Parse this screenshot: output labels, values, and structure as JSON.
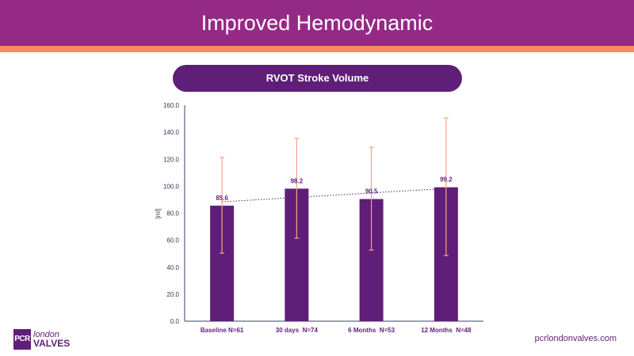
{
  "header": {
    "title": "Improved Hemodynamic"
  },
  "colors": {
    "header": "#952a86",
    "accent": "#f78a66",
    "bar": "#5f1f78",
    "error": "#f3a483",
    "axis": "#2d3a55"
  },
  "footer": {
    "logo_box": "PCR",
    "logo_top": "london",
    "logo_bottom": "VALVES",
    "website": "pcrlondonvalves.com"
  },
  "chart_data": {
    "type": "bar",
    "title": "RVOT Stroke Volume",
    "ylabel": "[ml]",
    "xlabel": "",
    "ylim": [
      0,
      160
    ],
    "yticks": [
      "0.0",
      "20.0",
      "40.0",
      "60.0",
      "80.0",
      "100.0",
      "120.0",
      "140.0",
      "160.0"
    ],
    "categories": [
      "Baseline N=61",
      "30 days  N=74",
      "6 Months  N=53",
      "12 Months  N=48"
    ],
    "values": [
      85.6,
      98.2,
      90.5,
      99.2
    ],
    "value_labels": [
      "85.6",
      "98.2",
      "90.5",
      "99.2"
    ],
    "error_upper": [
      121.3,
      135.4,
      128.9,
      150.6
    ],
    "error_lower": [
      50.4,
      61.5,
      52.7,
      48.6
    ],
    "trendline": "linear dotted",
    "grid": false
  }
}
